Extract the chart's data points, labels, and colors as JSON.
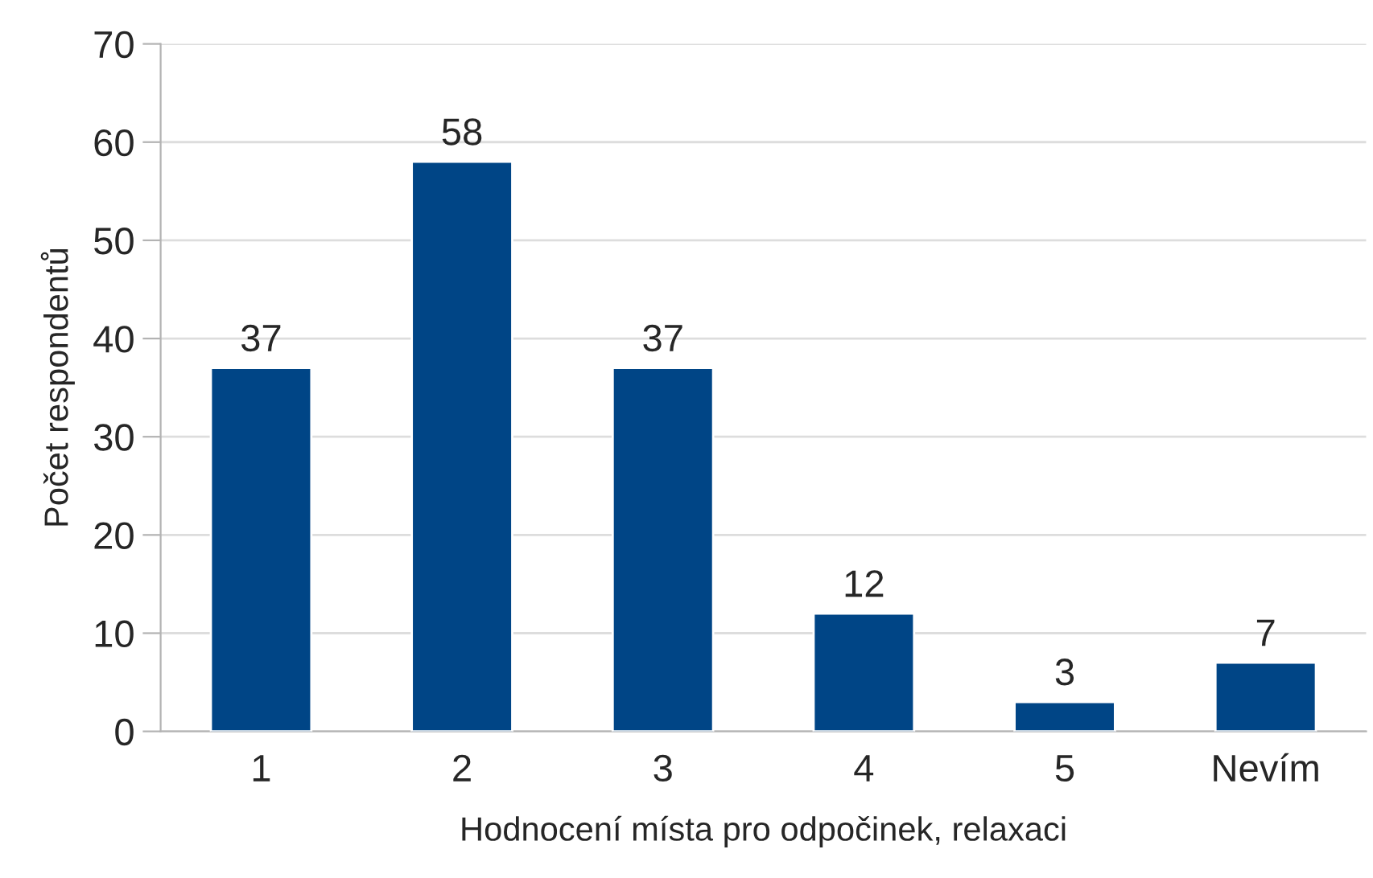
{
  "chart_data": {
    "type": "bar",
    "xlabel": "Hodnocení místa pro odpočinek, relaxaci",
    "ylabel": "Počet respondentů",
    "categories": [
      "1",
      "2",
      "3",
      "4",
      "5",
      "Nevím"
    ],
    "values": [
      37,
      58,
      37,
      12,
      3,
      7
    ],
    "color": "#004586",
    "ylim": [
      0,
      70
    ],
    "yticks": [
      0,
      10,
      20,
      30,
      40,
      50,
      60,
      70
    ],
    "grid": "y",
    "data_labels": true
  }
}
